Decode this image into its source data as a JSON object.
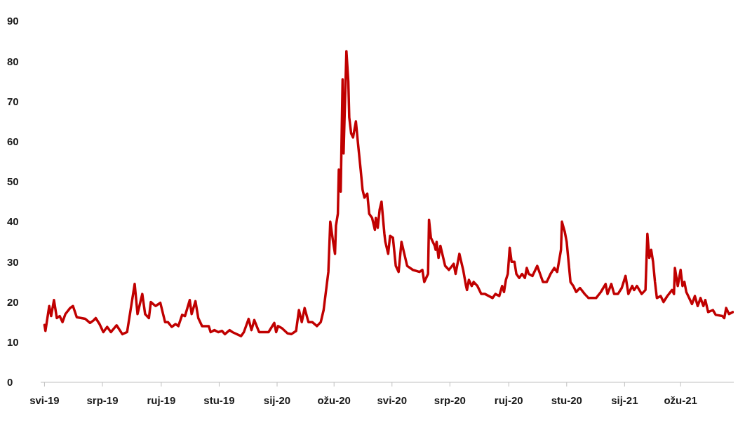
{
  "chart_data": {
    "type": "line",
    "color": "#c00000",
    "line_style": "solid",
    "marker": "none",
    "grid": false,
    "legend": false,
    "xlim": [
      "2019-04-27",
      "2021-04-26"
    ],
    "xticks": [
      {
        "value": "2019-05-01",
        "label": "svi-19"
      },
      {
        "value": "2019-07-01",
        "label": "srp-19"
      },
      {
        "value": "2019-09-01",
        "label": "ruj-19"
      },
      {
        "value": "2019-11-01",
        "label": "stu-19"
      },
      {
        "value": "2020-01-01",
        "label": "sij-20"
      },
      {
        "value": "2020-03-01",
        "label": "ožu-20"
      },
      {
        "value": "2020-05-01",
        "label": "svi-20"
      },
      {
        "value": "2020-07-01",
        "label": "srp-20"
      },
      {
        "value": "2020-09-01",
        "label": "ruj-20"
      },
      {
        "value": "2020-11-01",
        "label": "stu-20"
      },
      {
        "value": "2021-01-01",
        "label": "sij-21"
      },
      {
        "value": "2021-03-01",
        "label": "ožu-21"
      }
    ],
    "ylim": [
      0,
      90
    ],
    "yticks": [
      0,
      10,
      20,
      30,
      40,
      50,
      60,
      70,
      80,
      90
    ],
    "x": [
      "2019-05-01",
      "2019-05-02",
      "2019-05-06",
      "2019-05-08",
      "2019-05-11",
      "2019-05-14",
      "2019-05-17",
      "2019-05-20",
      "2019-05-23",
      "2019-05-28",
      "2019-05-31",
      "2019-06-04",
      "2019-06-13",
      "2019-06-18",
      "2019-06-22",
      "2019-06-24",
      "2019-06-28",
      "2019-07-02",
      "2019-07-06",
      "2019-07-10",
      "2019-07-16",
      "2019-07-22",
      "2019-07-27",
      "2019-07-30",
      "2019-08-04",
      "2019-08-07",
      "2019-08-12",
      "2019-08-15",
      "2019-08-19",
      "2019-08-21",
      "2019-08-26",
      "2019-08-31",
      "2019-09-05",
      "2019-09-08",
      "2019-09-12",
      "2019-09-16",
      "2019-09-19",
      "2019-09-23",
      "2019-09-26",
      "2019-10-01",
      "2019-10-03",
      "2019-10-07",
      "2019-10-10",
      "2019-10-14",
      "2019-10-21",
      "2019-10-23",
      "2019-10-27",
      "2019-10-31",
      "2019-11-04",
      "2019-11-07",
      "2019-11-12",
      "2019-11-15",
      "2019-11-24",
      "2019-11-27",
      "2019-12-02",
      "2019-12-05",
      "2019-12-08",
      "2019-12-13",
      "2019-12-23",
      "2019-12-29",
      "2019-12-31",
      "2020-01-02",
      "2020-01-06",
      "2020-01-12",
      "2020-01-16",
      "2020-01-21",
      "2020-01-24",
      "2020-01-27",
      "2020-01-30",
      "2020-02-03",
      "2020-02-07",
      "2020-02-12",
      "2020-02-16",
      "2020-02-19",
      "2020-02-24",
      "2020-02-26",
      "2020-02-29",
      "2020-03-02",
      "2020-03-03",
      "2020-03-05",
      "2020-03-06",
      "2020-03-08",
      "2020-03-10",
      "2020-03-11",
      "2020-03-14",
      "2020-03-16",
      "2020-03-17",
      "2020-03-19",
      "2020-03-21",
      "2020-03-24",
      "2020-03-26",
      "2020-03-29",
      "2020-03-31",
      "2020-04-02",
      "2020-04-05",
      "2020-04-07",
      "2020-04-10",
      "2020-04-13",
      "2020-04-14",
      "2020-04-16",
      "2020-04-18",
      "2020-04-20",
      "2020-04-23",
      "2020-04-24",
      "2020-04-27",
      "2020-04-29",
      "2020-05-02",
      "2020-05-05",
      "2020-05-08",
      "2020-05-11",
      "2020-05-14",
      "2020-05-17",
      "2020-05-23",
      "2020-05-30",
      "2020-06-02",
      "2020-06-04",
      "2020-06-08",
      "2020-06-09",
      "2020-06-11",
      "2020-06-15",
      "2020-06-16",
      "2020-06-17",
      "2020-06-19",
      "2020-06-21",
      "2020-06-26",
      "2020-06-30",
      "2020-07-05",
      "2020-07-07",
      "2020-07-11",
      "2020-07-15",
      "2020-07-18",
      "2020-07-19",
      "2020-07-21",
      "2020-07-24",
      "2020-07-26",
      "2020-07-30",
      "2020-08-03",
      "2020-08-07",
      "2020-08-15",
      "2020-08-18",
      "2020-08-22",
      "2020-08-25",
      "2020-08-27",
      "2020-08-29",
      "2020-08-31",
      "2020-09-02",
      "2020-09-04",
      "2020-09-07",
      "2020-09-09",
      "2020-09-12",
      "2020-09-15",
      "2020-09-18",
      "2020-09-20",
      "2020-09-22",
      "2020-09-26",
      "2020-10-01",
      "2020-10-04",
      "2020-10-07",
      "2020-10-11",
      "2020-10-15",
      "2020-10-19",
      "2020-10-22",
      "2020-10-26",
      "2020-10-27",
      "2020-10-30",
      "2020-11-01",
      "2020-11-03",
      "2020-11-05",
      "2020-11-08",
      "2020-11-11",
      "2020-11-15",
      "2020-11-20",
      "2020-11-24",
      "2020-12-02",
      "2020-12-07",
      "2020-12-12",
      "2020-12-14",
      "2020-12-18",
      "2020-12-21",
      "2020-12-25",
      "2020-12-29",
      "2021-01-02",
      "2021-01-05",
      "2021-01-09",
      "2021-01-11",
      "2021-01-14",
      "2021-01-19",
      "2021-01-23",
      "2021-01-25",
      "2021-01-27",
      "2021-01-29",
      "2021-01-31",
      "2021-02-02",
      "2021-02-04",
      "2021-02-08",
      "2021-02-11",
      "2021-02-15",
      "2021-02-20",
      "2021-02-22",
      "2021-02-23",
      "2021-02-26",
      "2021-03-01",
      "2021-03-03",
      "2021-03-05",
      "2021-03-07",
      "2021-03-10",
      "2021-03-13",
      "2021-03-16",
      "2021-03-19",
      "2021-03-22",
      "2021-03-25",
      "2021-03-27",
      "2021-03-30",
      "2021-04-04",
      "2021-04-07",
      "2021-04-14",
      "2021-04-16",
      "2021-04-18",
      "2021-04-21",
      "2021-04-25"
    ],
    "values": [
      14.3,
      12.8,
      19,
      16.5,
      20.5,
      16,
      16.5,
      15,
      17,
      18.5,
      19,
      16.2,
      15.8,
      14.8,
      15.5,
      16,
      14.5,
      12.5,
      13.8,
      12.5,
      14.2,
      12,
      12.5,
      17,
      24.5,
      17,
      22,
      17,
      16,
      20,
      19,
      19.8,
      15,
      15,
      13.8,
      14.5,
      14,
      16.8,
      16.5,
      20.5,
      17,
      20.2,
      16,
      14,
      14,
      12.5,
      13,
      12.5,
      12.8,
      12,
      13,
      12.5,
      11.5,
      12.5,
      15.8,
      13,
      15.5,
      12.5,
      12.5,
      14.8,
      12.5,
      14,
      13.5,
      12.2,
      12,
      12.8,
      18,
      15,
      18.5,
      15,
      15,
      14,
      15,
      18,
      27.5,
      40,
      35,
      32,
      39,
      42,
      53,
      47.5,
      75.5,
      57,
      82.5,
      75,
      66,
      62,
      61,
      65,
      60,
      53,
      48,
      46,
      47,
      42,
      41,
      38,
      41,
      38.5,
      43,
      45,
      37,
      35,
      32,
      36.5,
      36,
      29,
      27.5,
      35,
      32,
      29,
      28,
      27.5,
      28,
      25,
      27,
      40.5,
      36,
      34,
      33,
      35,
      31,
      34,
      29,
      28,
      29.5,
      27,
      32,
      28,
      24,
      23,
      25.5,
      24,
      25,
      24,
      22,
      22,
      21,
      22,
      21.5,
      24,
      22.5,
      25.5,
      27,
      33.5,
      30,
      30,
      27,
      26,
      27,
      26,
      28.5,
      27,
      26.5,
      29,
      27,
      25,
      25,
      27,
      28.5,
      27.5,
      33,
      40,
      37.5,
      35,
      30,
      25,
      24,
      22.5,
      23.5,
      22,
      21,
      21,
      22.5,
      24.5,
      22,
      24.5,
      22,
      22,
      23.5,
      26.5,
      22,
      24,
      23,
      24,
      22,
      23,
      37,
      31,
      33,
      30,
      25,
      21,
      21.5,
      20,
      21.5,
      23,
      22,
      28.5,
      24,
      28,
      24,
      25,
      22.5,
      21,
      19.5,
      21.5,
      19,
      21,
      19,
      20.5,
      17.5,
      18,
      16.8,
      16.5,
      16,
      18.5,
      17,
      17.5
    ]
  }
}
